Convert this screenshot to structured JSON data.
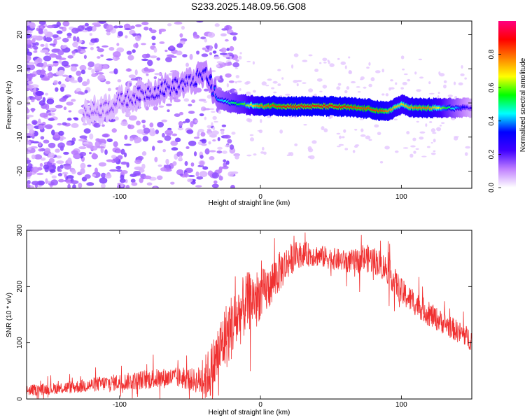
{
  "title": "S233.2025.148.09.56.G08",
  "chart_data": [
    {
      "type": "heatmap",
      "xlabel": "Height of straight line (km)",
      "ylabel": "Frequency (Hz)",
      "xlim": [
        -166,
        150
      ],
      "ylim": [
        -25,
        24
      ],
      "xticks": [
        -100,
        0,
        100
      ],
      "yticks": [
        -20,
        -10,
        0,
        10,
        20
      ],
      "grid": false,
      "colorbar": {
        "label": "Normalized spectral amplitude",
        "range": [
          0,
          1
        ],
        "ticks": [
          "0.0",
          "0.2",
          "0.4",
          "0.6",
          "0.8"
        ],
        "colormap": [
          "#ffffff",
          "#c080ff",
          "#4000ff",
          "#0000ff",
          "#00ffff",
          "#00ff00",
          "#ffff00",
          "#ff8000",
          "#ff0000",
          "#ff0080"
        ]
      },
      "ridge": {
        "x": [
          -120,
          -110,
          -100,
          -90,
          -80,
          -70,
          -60,
          -50,
          -42,
          -38,
          -34,
          -30,
          -20,
          -10,
          0,
          10,
          20,
          30,
          40,
          50,
          60,
          70,
          80,
          86,
          90,
          95,
          100,
          110,
          120,
          130,
          140,
          150
        ],
        "freq": [
          -2.5,
          -1.5,
          0.5,
          2,
          3,
          4,
          5,
          6,
          8,
          8.5,
          4,
          1,
          0,
          -0.5,
          -1,
          -0.8,
          -1,
          -1,
          -1,
          -1,
          -1.2,
          -1.5,
          -1.8,
          -2.5,
          -2.5,
          -1.5,
          -0.5,
          -1.5,
          -1.5,
          -1.5,
          -1.5,
          -1.5
        ],
        "amplitude": [
          0.15,
          0.15,
          0.18,
          0.2,
          0.22,
          0.25,
          0.25,
          0.25,
          0.3,
          0.3,
          0.35,
          0.4,
          0.5,
          0.6,
          0.8,
          0.85,
          0.9,
          0.9,
          0.9,
          0.9,
          0.88,
          0.85,
          0.85,
          0.85,
          0.8,
          0.75,
          0.7,
          0.8,
          0.8,
          0.6,
          0.4,
          0.2
        ]
      }
    },
    {
      "type": "line",
      "xlabel": "Height of straight line (km)",
      "ylabel": "SNR (10 * v/v)",
      "xlim": [
        -166,
        150
      ],
      "ylim": [
        0,
        300
      ],
      "xticks": [
        -100,
        0,
        100
      ],
      "yticks": [
        0,
        100,
        200,
        300
      ],
      "grid": false,
      "series": [
        {
          "color": "#f03030",
          "x": [
            -166,
            -150,
            -140,
            -130,
            -120,
            -110,
            -100,
            -90,
            -80,
            -70,
            -60,
            -50,
            -45,
            -40,
            -35,
            -30,
            -25,
            -20,
            -15,
            -10,
            -5,
            0,
            5,
            10,
            15,
            20,
            25,
            30,
            40,
            50,
            60,
            70,
            75,
            80,
            85,
            90,
            95,
            100,
            110,
            120,
            130,
            140,
            150
          ],
          "y": [
            15,
            18,
            20,
            22,
            25,
            28,
            30,
            32,
            35,
            37,
            38,
            35,
            32,
            35,
            50,
            80,
            110,
            130,
            150,
            170,
            180,
            185,
            195,
            215,
            230,
            245,
            255,
            258,
            255,
            250,
            245,
            245,
            250,
            248,
            240,
            230,
            210,
            190,
            170,
            150,
            135,
            120,
            105
          ],
          "noise": [
            10,
            10,
            11,
            12,
            13,
            14,
            15,
            16,
            18,
            18,
            18,
            20,
            22,
            40,
            50,
            55,
            60,
            60,
            58,
            55,
            50,
            45,
            42,
            40,
            35,
            30,
            25,
            22,
            20,
            20,
            20,
            22,
            25,
            25,
            25,
            25,
            25,
            25,
            22,
            22,
            20,
            20,
            20
          ]
        }
      ]
    }
  ]
}
